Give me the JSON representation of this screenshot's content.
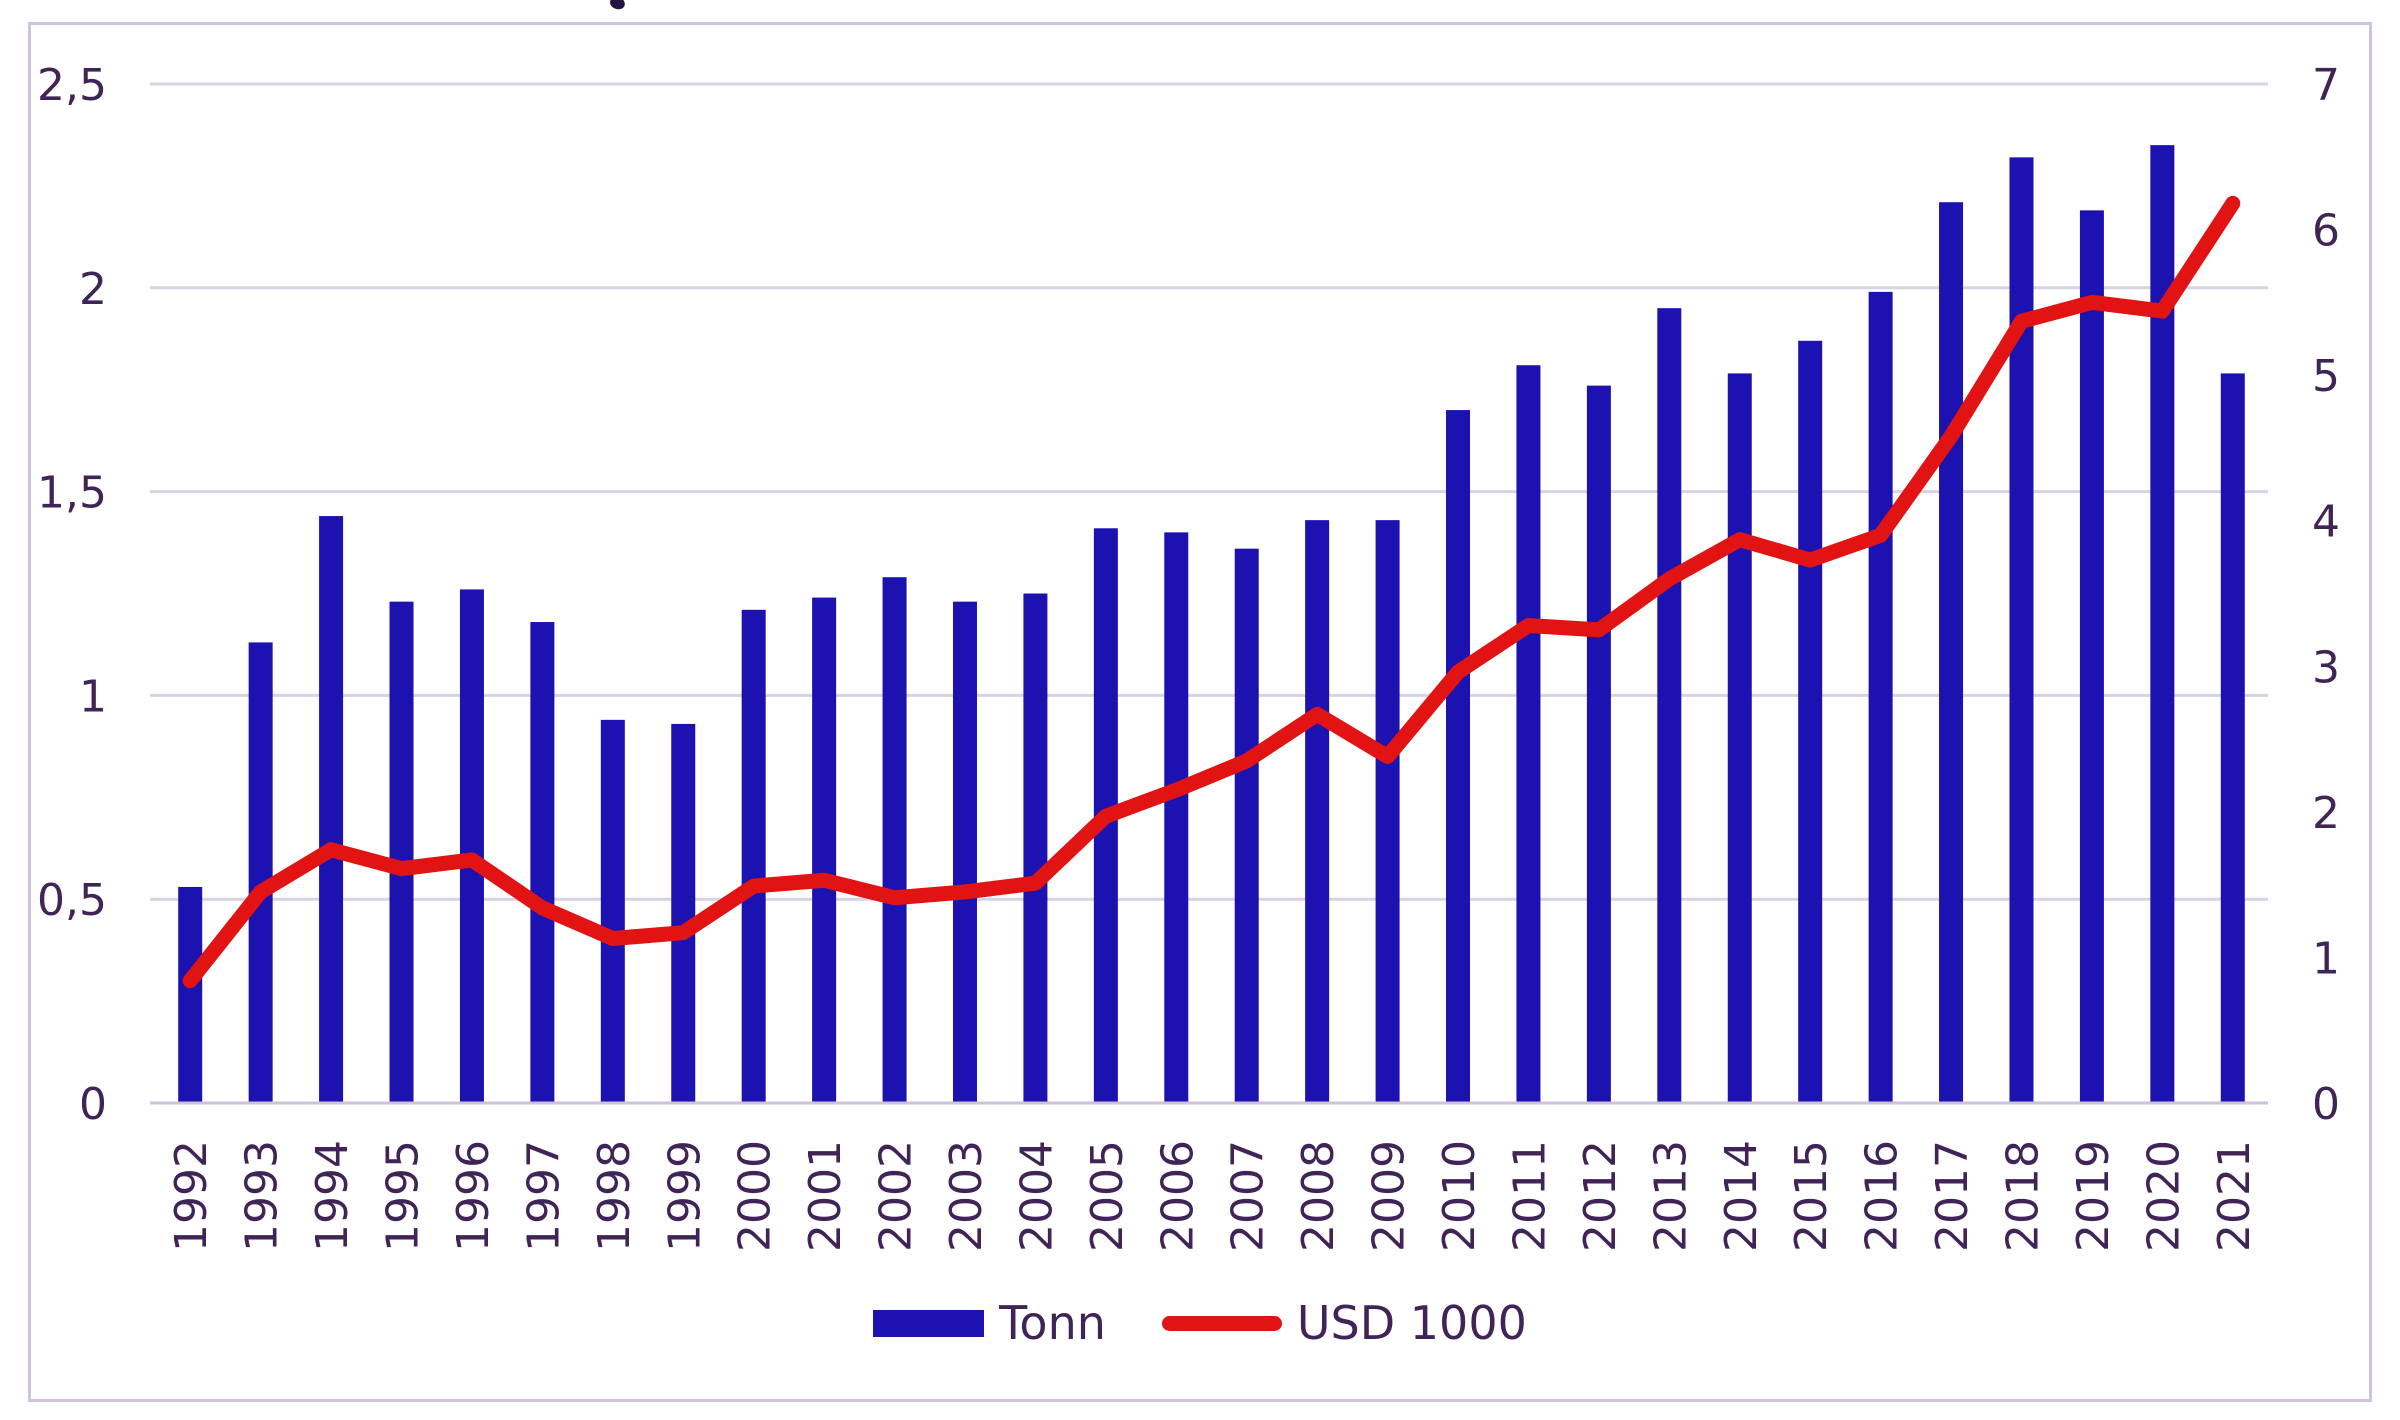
{
  "chart_data": {
    "type": "bar",
    "subtype": "combo-bar-line-dual-axis",
    "categories": [
      "1992",
      "1993",
      "1994",
      "1995",
      "1996",
      "1997",
      "1998",
      "1999",
      "2000",
      "2001",
      "2002",
      "2003",
      "2004",
      "2005",
      "2006",
      "2007",
      "2008",
      "2009",
      "2010",
      "2011",
      "2012",
      "2013",
      "2014",
      "2015",
      "2016",
      "2017",
      "2018",
      "2019",
      "2020",
      "2021"
    ],
    "series": [
      {
        "name": "Tonn",
        "type": "bar",
        "axis": "left",
        "color": "#1b12b0",
        "values": [
          0.53,
          1.13,
          1.44,
          1.23,
          1.26,
          1.18,
          0.94,
          0.93,
          1.21,
          1.24,
          1.29,
          1.23,
          1.25,
          1.41,
          1.4,
          1.36,
          1.43,
          1.43,
          1.7,
          1.81,
          1.76,
          1.95,
          1.79,
          1.87,
          1.99,
          2.21,
          2.32,
          2.19,
          2.35,
          1.79
        ]
      },
      {
        "name": "USD 1000",
        "type": "line",
        "axis": "right",
        "color": "#e11313",
        "values": [
          0.84,
          1.45,
          1.74,
          1.61,
          1.67,
          1.34,
          1.13,
          1.17,
          1.49,
          1.53,
          1.41,
          1.45,
          1.51,
          1.97,
          2.15,
          2.35,
          2.67,
          2.38,
          2.96,
          3.28,
          3.25,
          3.6,
          3.87,
          3.73,
          3.9,
          4.58,
          5.37,
          5.5,
          5.44,
          6.18
        ]
      }
    ],
    "left_axis": {
      "min": 0,
      "max": 2.5,
      "ticks_top_to_bottom": [
        "2,5",
        "2",
        "1,5",
        "1",
        "0,5",
        "0"
      ],
      "decimal_separator": "comma"
    },
    "right_axis": {
      "min": 0,
      "max": 7,
      "ticks_top_to_bottom": [
        "7",
        "6",
        "5",
        "4",
        "3",
        "2",
        "1",
        "0"
      ]
    },
    "grid": true,
    "legend_position": "bottom",
    "title": "",
    "xlabel": "",
    "ylabel": ""
  },
  "legend": {
    "items": [
      {
        "label": "Tonn",
        "swatch": "bar-rectangle"
      },
      {
        "label": "USD 1000",
        "swatch": "line-segment"
      }
    ]
  },
  "colors": {
    "bar": "#1b12b0",
    "line": "#e11313",
    "axis_text": "#402457",
    "gridline": "#d9d2e2",
    "baseline": "#cdc2da",
    "frame_border": "#cfc4dc",
    "background": "#ffffff"
  }
}
